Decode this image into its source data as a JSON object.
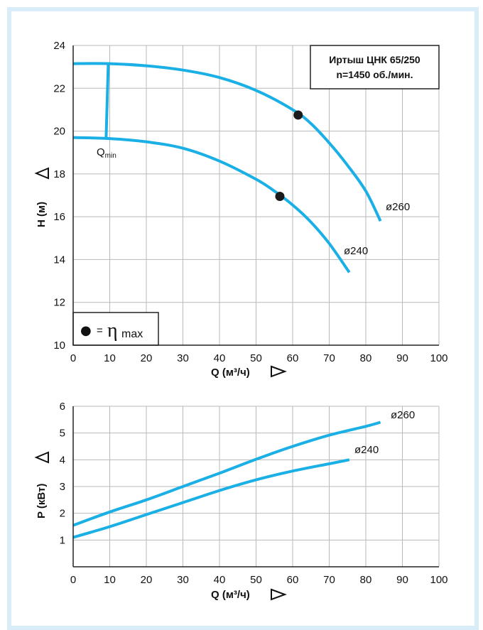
{
  "colors": {
    "curve": "#1ab0e6",
    "grid": "#b9b9b9",
    "frame": "#d8edf8",
    "axis": "#222222"
  },
  "chart_data": [
    {
      "type": "line",
      "title": "Иртыш ЦНК 65/250",
      "subtitle": "n=1450 об./мин.",
      "xlabel": "Q (м³/ч)",
      "ylabel": "H (м)",
      "xlim": [
        0,
        100
      ],
      "ylim": [
        10,
        24
      ],
      "x_ticks": [
        "0",
        "10",
        "20",
        "30",
        "40",
        "50",
        "60",
        "70",
        "80",
        "90",
        "100"
      ],
      "y_ticks": [
        "10",
        "12",
        "14",
        "16",
        "18",
        "20",
        "22",
        "24"
      ],
      "grid": true,
      "series": [
        {
          "name": "ø260",
          "x": [
            0,
            10,
            20,
            30,
            40,
            50,
            60,
            65,
            70,
            75,
            80,
            84
          ],
          "y": [
            23.15,
            23.15,
            23.05,
            22.85,
            22.5,
            21.9,
            21.0,
            20.35,
            19.45,
            18.4,
            17.2,
            15.8
          ],
          "eta_max": {
            "x": 61.5,
            "y": 20.75
          }
        },
        {
          "name": "ø240",
          "x": [
            0,
            10,
            20,
            30,
            40,
            50,
            55,
            60,
            65,
            70,
            75.5
          ],
          "y": [
            19.7,
            19.65,
            19.5,
            19.2,
            18.6,
            17.75,
            17.2,
            16.55,
            15.75,
            14.75,
            13.4
          ],
          "eta_max": {
            "x": 56.5,
            "y": 16.95
          }
        }
      ],
      "qmin": {
        "label": "Q",
        "sub": "min",
        "x": 10
      },
      "legend": {
        "symbol": "●",
        "eq": "=",
        "eta": "η",
        "eta_sub": "max",
        "placement": "bottom-left"
      }
    },
    {
      "type": "line",
      "xlabel": "Q (м³/ч)",
      "ylabel": "P (кВт)",
      "xlim": [
        0,
        100
      ],
      "ylim": [
        0,
        6
      ],
      "x_ticks": [
        "0",
        "10",
        "20",
        "30",
        "40",
        "50",
        "60",
        "70",
        "80",
        "90",
        "100"
      ],
      "y_ticks": [
        "1",
        "2",
        "3",
        "4",
        "5",
        "6"
      ],
      "grid": true,
      "series": [
        {
          "name": "ø260",
          "x": [
            0,
            10,
            20,
            30,
            40,
            50,
            60,
            70,
            80,
            84
          ],
          "y": [
            1.55,
            2.05,
            2.5,
            3.0,
            3.5,
            4.02,
            4.5,
            4.92,
            5.25,
            5.4
          ]
        },
        {
          "name": "ø240",
          "x": [
            0,
            10,
            20,
            30,
            40,
            50,
            60,
            70,
            75.5
          ],
          "y": [
            1.1,
            1.5,
            1.95,
            2.4,
            2.85,
            3.25,
            3.58,
            3.85,
            4.0
          ]
        }
      ]
    }
  ]
}
